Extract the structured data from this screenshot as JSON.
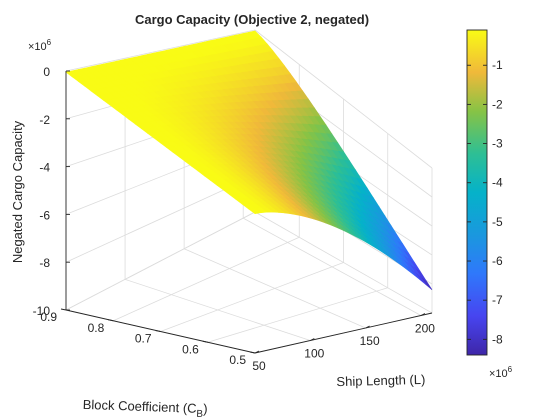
{
  "chart_data": {
    "type": "surface",
    "title": "Cargo Capacity (Objective 2, negated)",
    "xlabel": "Ship Length (L)",
    "ylabel_main": "Block Coefficient (C",
    "ylabel_sub": "B",
    "ylabel_close": ")",
    "zlabel": "Negated Cargo Capacity",
    "z_exponent_base": "×10",
    "z_exponent_power": "6",
    "colorbar_exponent_base": "×10",
    "colorbar_exponent_power": "6",
    "xlim": [
      50,
      210
    ],
    "ylim": [
      0.5,
      0.9
    ],
    "zlim": [
      -10,
      0
    ],
    "zlim_scale": 1000000,
    "x_ticks": [
      50,
      100,
      150,
      200
    ],
    "x_tick_labels": [
      "50",
      "100",
      "150",
      "200"
    ],
    "y_ticks": [
      0.5,
      0.6,
      0.7,
      0.8,
      0.9
    ],
    "y_tick_labels": [
      "0.5",
      "0.6",
      "0.7",
      "0.8",
      "0.9"
    ],
    "z_ticks": [
      0,
      -2,
      -4,
      -6,
      -8,
      -10
    ],
    "z_tick_labels": [
      "0",
      "-2",
      "-4",
      "-6",
      "-8",
      "-10"
    ],
    "colorbar_ticks": [
      -1,
      -2,
      -3,
      -4,
      -5,
      -6,
      -7,
      -8
    ],
    "colorbar_tick_labels": [
      "-1",
      "-2",
      "-3",
      "-4",
      "-5",
      "-6",
      "-7",
      "-8"
    ],
    "colorbar_range": [
      -8.4,
      -0.1
    ],
    "surface": {
      "x_range": [
        50,
        210
      ],
      "y_range": [
        0.5,
        0.9
      ],
      "z_min_value": -8.4,
      "z_max_value": -0.05
    },
    "grid": true,
    "colormap": "parula"
  }
}
